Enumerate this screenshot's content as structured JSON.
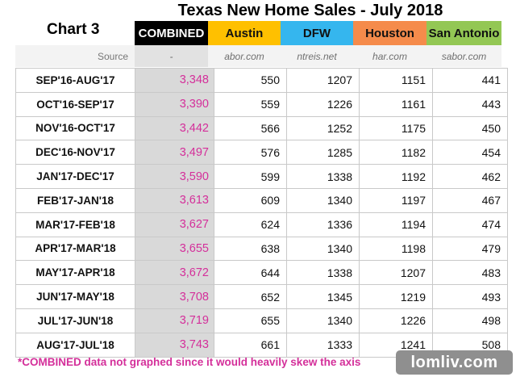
{
  "title": "Texas New Home Sales - July 2018",
  "chart_label": "Chart 3",
  "columns": [
    {
      "label": "COMBINED",
      "bg": "#000000",
      "fg": "#ffffff"
    },
    {
      "label": "Austin",
      "bg": "#ffc000",
      "fg": "#111111"
    },
    {
      "label": "DFW",
      "bg": "#35b6ee",
      "fg": "#111111"
    },
    {
      "label": "Houston",
      "bg": "#f58b4b",
      "fg": "#111111"
    },
    {
      "label": "San Antonio",
      "bg": "#93c754",
      "fg": "#111111"
    }
  ],
  "source": {
    "label": "Source",
    "values": [
      "-",
      "abor.com",
      "ntreis.net",
      "har.com",
      "sabor.com"
    ]
  },
  "rows": [
    {
      "period": "SEP'16-AUG'17",
      "combined": "3,348",
      "austin": "550",
      "dfw": "1207",
      "houston": "1151",
      "san_antonio": "441"
    },
    {
      "period": "OCT'16-SEP'17",
      "combined": "3,390",
      "austin": "559",
      "dfw": "1226",
      "houston": "1161",
      "san_antonio": "443"
    },
    {
      "period": "NOV'16-OCT'17",
      "combined": "3,442",
      "austin": "566",
      "dfw": "1252",
      "houston": "1175",
      "san_antonio": "450"
    },
    {
      "period": "DEC'16-NOV'17",
      "combined": "3,497",
      "austin": "576",
      "dfw": "1285",
      "houston": "1182",
      "san_antonio": "454"
    },
    {
      "period": "JAN'17-DEC'17",
      "combined": "3,590",
      "austin": "599",
      "dfw": "1338",
      "houston": "1192",
      "san_antonio": "462"
    },
    {
      "period": "FEB'17-JAN'18",
      "combined": "3,613",
      "austin": "609",
      "dfw": "1340",
      "houston": "1197",
      "san_antonio": "467"
    },
    {
      "period": "MAR'17-FEB'18",
      "combined": "3,627",
      "austin": "624",
      "dfw": "1336",
      "houston": "1194",
      "san_antonio": "474"
    },
    {
      "period": "APR'17-MAR'18",
      "combined": "3,655",
      "austin": "638",
      "dfw": "1340",
      "houston": "1198",
      "san_antonio": "479"
    },
    {
      "period": "MAY'17-APR'18",
      "combined": "3,672",
      "austin": "644",
      "dfw": "1338",
      "houston": "1207",
      "san_antonio": "483"
    },
    {
      "period": "JUN'17-MAY'18",
      "combined": "3,708",
      "austin": "652",
      "dfw": "1345",
      "houston": "1219",
      "san_antonio": "493"
    },
    {
      "period": "JUL'17-JUN'18",
      "combined": "3,719",
      "austin": "655",
      "dfw": "1340",
      "houston": "1226",
      "san_antonio": "498"
    },
    {
      "period": "AUG'17-JUL'18",
      "combined": "3,743",
      "austin": "661",
      "dfw": "1333",
      "houston": "1241",
      "san_antonio": "508"
    }
  ],
  "footnote": "*COMBINED data not graphed since it would heavily skew the axis",
  "watermark": "lomliv.com"
}
